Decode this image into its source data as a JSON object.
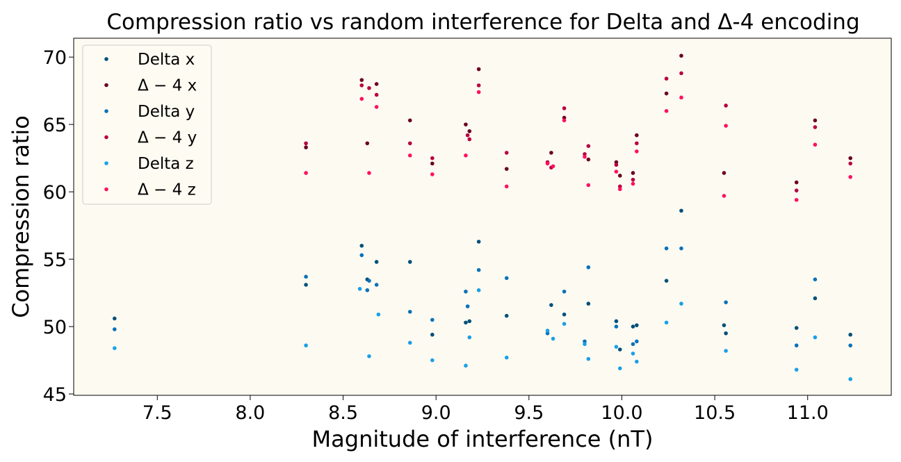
{
  "chart_data": {
    "type": "scatter",
    "title": "Compression ratio vs random interference for Delta and Δ-4 encoding",
    "xlabel": "Magnitude of interference (nT)",
    "ylabel": "Compression ratio",
    "xlim": [
      7.05,
      11.45
    ],
    "ylim": [
      44.9,
      71.4
    ],
    "xticks": [
      7.5,
      8.0,
      8.5,
      9.0,
      9.5,
      10.0,
      10.5,
      11.0
    ],
    "xtick_labels": [
      "7.5",
      "8.0",
      "8.5",
      "9.0",
      "9.5",
      "10.0",
      "10.5",
      "11.0"
    ],
    "yticks": [
      45,
      50,
      55,
      60,
      65,
      70
    ],
    "ytick_labels": [
      "45",
      "50",
      "55",
      "60",
      "65",
      "70"
    ],
    "plot_background": "#fdfaf2",
    "legend_position": "top-left",
    "series": [
      {
        "name": "Delta x",
        "legend_label": "Delta x",
        "color": "#00507a",
        "x": [
          7.27,
          8.3,
          8.6,
          8.63,
          8.68,
          8.86,
          8.98,
          9.16,
          9.18,
          9.23,
          9.38,
          9.62,
          9.69,
          9.82,
          9.97,
          9.99,
          10.06,
          10.08,
          10.24,
          10.32,
          10.55,
          10.56,
          10.94,
          11.04,
          11.23
        ],
        "y": [
          50.6,
          53.1,
          56.0,
          53.5,
          54.8,
          54.8,
          49.4,
          50.3,
          50.4,
          56.3,
          50.8,
          51.6,
          50.9,
          51.7,
          50.4,
          48.3,
          50.0,
          50.1,
          53.4,
          58.6,
          50.1,
          49.5,
          49.9,
          52.1,
          49.4
        ]
      },
      {
        "name": "Δ-4 x",
        "legend_label": "Δ − 4  x",
        "color": "#6b0020",
        "x": [
          8.3,
          8.6,
          8.63,
          8.68,
          8.86,
          8.98,
          9.16,
          9.18,
          9.23,
          9.38,
          9.62,
          9.69,
          9.82,
          9.97,
          9.99,
          10.06,
          10.08,
          10.24,
          10.32,
          10.55,
          10.94,
          11.04,
          11.23
        ],
        "y": [
          63.3,
          68.3,
          63.6,
          68.0,
          65.3,
          62.1,
          65.0,
          64.5,
          69.1,
          61.7,
          62.9,
          65.5,
          62.4,
          62.2,
          61.2,
          61.4,
          64.2,
          67.3,
          70.1,
          61.4,
          60.7,
          65.3,
          62.5
        ]
      },
      {
        "name": "Delta y",
        "legend_label": "Delta y",
        "color": "#0a72b8",
        "x": [
          7.27,
          8.3,
          8.6,
          8.63,
          8.64,
          8.68,
          8.86,
          8.98,
          9.16,
          9.17,
          9.23,
          9.38,
          9.6,
          9.69,
          9.8,
          9.82,
          9.97,
          10.06,
          10.08,
          10.24,
          10.32,
          10.56,
          10.94,
          11.04,
          11.23
        ],
        "y": [
          49.8,
          53.7,
          55.3,
          52.7,
          53.4,
          53.1,
          51.1,
          50.5,
          52.6,
          51.5,
          54.2,
          53.6,
          49.5,
          52.6,
          48.9,
          54.4,
          50.0,
          48.7,
          48.9,
          55.8,
          55.8,
          51.8,
          48.6,
          53.5,
          48.6
        ]
      },
      {
        "name": "Δ-4 y",
        "legend_label": "Δ − 4  y",
        "color": "#b80040",
        "x": [
          8.3,
          8.6,
          8.64,
          8.68,
          8.86,
          8.98,
          9.17,
          9.18,
          9.23,
          9.38,
          9.6,
          9.62,
          9.69,
          9.8,
          9.82,
          9.97,
          9.99,
          10.06,
          10.08,
          10.24,
          10.32,
          10.56,
          10.94,
          11.04,
          11.23
        ],
        "y": [
          63.6,
          67.9,
          67.7,
          67.2,
          63.6,
          62.5,
          64.2,
          63.9,
          67.9,
          62.9,
          62.2,
          61.8,
          66.2,
          62.8,
          63.4,
          62.0,
          60.4,
          60.9,
          63.6,
          68.4,
          68.8,
          66.4,
          60.1,
          64.8,
          62.1
        ]
      },
      {
        "name": "Delta z",
        "legend_label": "Delta z",
        "color": "#1aa0e6",
        "x": [
          7.27,
          8.3,
          8.59,
          8.64,
          8.69,
          8.86,
          8.98,
          9.16,
          9.18,
          9.23,
          9.38,
          9.6,
          9.63,
          9.69,
          9.8,
          9.82,
          9.97,
          9.99,
          10.06,
          10.08,
          10.24,
          10.32,
          10.56,
          10.94,
          11.04,
          11.23
        ],
        "y": [
          48.4,
          48.6,
          52.8,
          47.8,
          50.9,
          48.8,
          47.5,
          47.1,
          49.2,
          52.7,
          47.7,
          49.7,
          49.1,
          50.2,
          48.7,
          47.6,
          48.5,
          46.9,
          48.0,
          47.4,
          50.3,
          51.7,
          48.2,
          46.8,
          49.2,
          46.1
        ]
      },
      {
        "name": "Δ-4 z",
        "legend_label": "Δ − 4  z",
        "color": "#ff1060",
        "x": [
          8.3,
          8.6,
          8.64,
          8.68,
          8.86,
          8.98,
          9.16,
          9.23,
          9.38,
          9.6,
          9.63,
          9.69,
          9.8,
          9.82,
          9.97,
          9.99,
          10.06,
          10.08,
          10.24,
          10.32,
          10.55,
          10.56,
          10.94,
          11.04,
          11.23
        ],
        "y": [
          61.4,
          66.9,
          61.4,
          66.3,
          62.7,
          61.3,
          62.7,
          67.4,
          60.4,
          62.1,
          61.9,
          65.3,
          62.6,
          60.5,
          61.5,
          60.2,
          60.6,
          63.0,
          66.0,
          67.0,
          59.7,
          64.9,
          59.4,
          63.5,
          61.1
        ]
      }
    ]
  }
}
